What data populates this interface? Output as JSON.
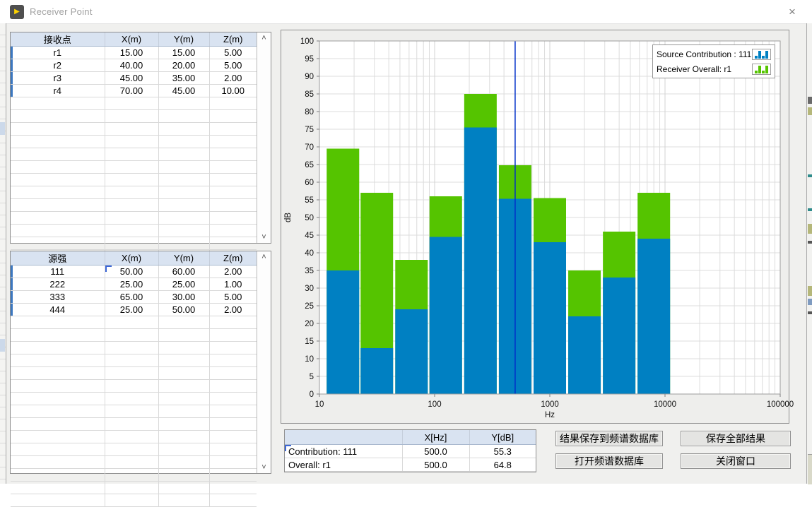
{
  "window": {
    "title": "Receiver Point"
  },
  "titlebar": {
    "close_glyph": "×"
  },
  "scrollbar": {
    "up_glyph": "˄",
    "down_glyph": "˅"
  },
  "receiver_table": {
    "headers": [
      "接收点",
      "X(m)",
      "Y(m)",
      "Z(m)"
    ],
    "rows": [
      [
        "r1",
        "15.00",
        "15.00",
        "5.00"
      ],
      [
        "r2",
        "40.00",
        "20.00",
        "5.00"
      ],
      [
        "r3",
        "45.00",
        "35.00",
        "2.00"
      ],
      [
        "r4",
        "70.00",
        "45.00",
        "10.00"
      ]
    ]
  },
  "source_table": {
    "headers": [
      "源强",
      "X(m)",
      "Y(m)",
      "Z(m)"
    ],
    "rows": [
      [
        "111",
        "50.00",
        "60.00",
        "2.00"
      ],
      [
        "222",
        "25.00",
        "25.00",
        "1.00"
      ],
      [
        "333",
        "65.00",
        "30.00",
        "5.00"
      ],
      [
        "444",
        "25.00",
        "50.00",
        "2.00"
      ]
    ],
    "selected_cell": {
      "row": 0,
      "col": 1
    }
  },
  "chart_data": {
    "type": "bar",
    "x_scale": "log",
    "x": [
      16,
      31.5,
      63,
      125,
      250,
      500,
      1000,
      2000,
      4000,
      8000
    ],
    "series": [
      {
        "name": "Source Contribution : 111",
        "color": "#0080c2",
        "values": [
          35,
          13,
          24,
          44.5,
          75.5,
          55.3,
          43,
          22,
          33,
          44
        ]
      },
      {
        "name": "Receiver Overall: r1",
        "color": "#55c400",
        "values": [
          69.5,
          57,
          38,
          56,
          85,
          64.8,
          55.5,
          35,
          46,
          57
        ]
      }
    ],
    "xlabel": "Hz",
    "ylabel": "dB",
    "xlim": [
      10,
      100000
    ],
    "ylim": [
      0,
      100
    ],
    "ytick_step": 5,
    "xtick_labels": [
      "10",
      "100",
      "1000",
      "10000",
      "100000"
    ],
    "cursor_x": 500,
    "cursor_color": "#0030c8",
    "grid": true,
    "grid_color": "#dcdcdc",
    "plot_bg": "#ffffff",
    "legend_position": "top-right"
  },
  "readout_table": {
    "headers": [
      "",
      "X[Hz]",
      "Y[dB]"
    ],
    "rows": [
      [
        "Contribution: 111",
        "500.0",
        "55.3"
      ],
      [
        "Overall: r1",
        "500.0",
        "64.8"
      ]
    ],
    "selected_cell": {
      "row": 0,
      "col": 0
    }
  },
  "buttons": {
    "save_to_db": "结果保存到频谱数据库",
    "save_all": "保存全部结果",
    "open_db": "打开频谱数据库",
    "close_window": "关闭窗口"
  }
}
